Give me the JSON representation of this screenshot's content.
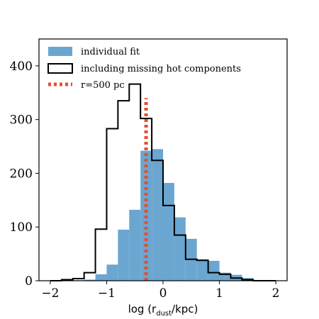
{
  "chart_data": {
    "type": "histogram",
    "xlabel": {
      "main": "log (r",
      "sub": "dust",
      "tail": "/kpc)"
    },
    "xlim": [
      -2.2,
      2.2
    ],
    "ylim": [
      0,
      450
    ],
    "xticks": [
      {
        "value": -2,
        "label": "−2"
      },
      {
        "value": -1,
        "label": "−1"
      },
      {
        "value": 0,
        "label": "0"
      },
      {
        "value": 1,
        "label": "1"
      },
      {
        "value": 2,
        "label": "2"
      }
    ],
    "yticks": [
      {
        "value": 0,
        "label": "0"
      },
      {
        "value": 100,
        "label": "100"
      },
      {
        "value": 200,
        "label": "200"
      },
      {
        "value": 300,
        "label": "300"
      },
      {
        "value": 400,
        "label": "400"
      }
    ],
    "bin_edges": [
      -2.0,
      -1.8,
      -1.6,
      -1.4,
      -1.2,
      -1.0,
      -0.8,
      -0.6,
      -0.4,
      -0.2,
      0.0,
      0.2,
      0.4,
      0.6,
      0.8,
      1.0,
      1.2,
      1.4,
      1.6,
      1.8,
      2.0
    ],
    "series": [
      {
        "name": "individual fit",
        "style": "filled",
        "color": "#6ba6d1",
        "values": [
          0,
          0,
          1,
          2,
          12,
          30,
          95,
          132,
          242,
          245,
          182,
          118,
          78,
          40,
          37,
          15,
          11,
          5,
          1,
          0
        ]
      },
      {
        "name": "including missing hot components",
        "style": "step",
        "color": "#000000",
        "values": [
          0,
          2,
          4,
          15,
          96,
          283,
          335,
          366,
          302,
          224,
          140,
          85,
          40,
          38,
          15,
          12,
          5,
          2,
          0,
          0
        ]
      }
    ],
    "vline": {
      "name": "r=500 pc",
      "x": -0.301,
      "y_top": 340,
      "color": "#e05030"
    },
    "legend": {
      "position": "upper-left"
    }
  }
}
